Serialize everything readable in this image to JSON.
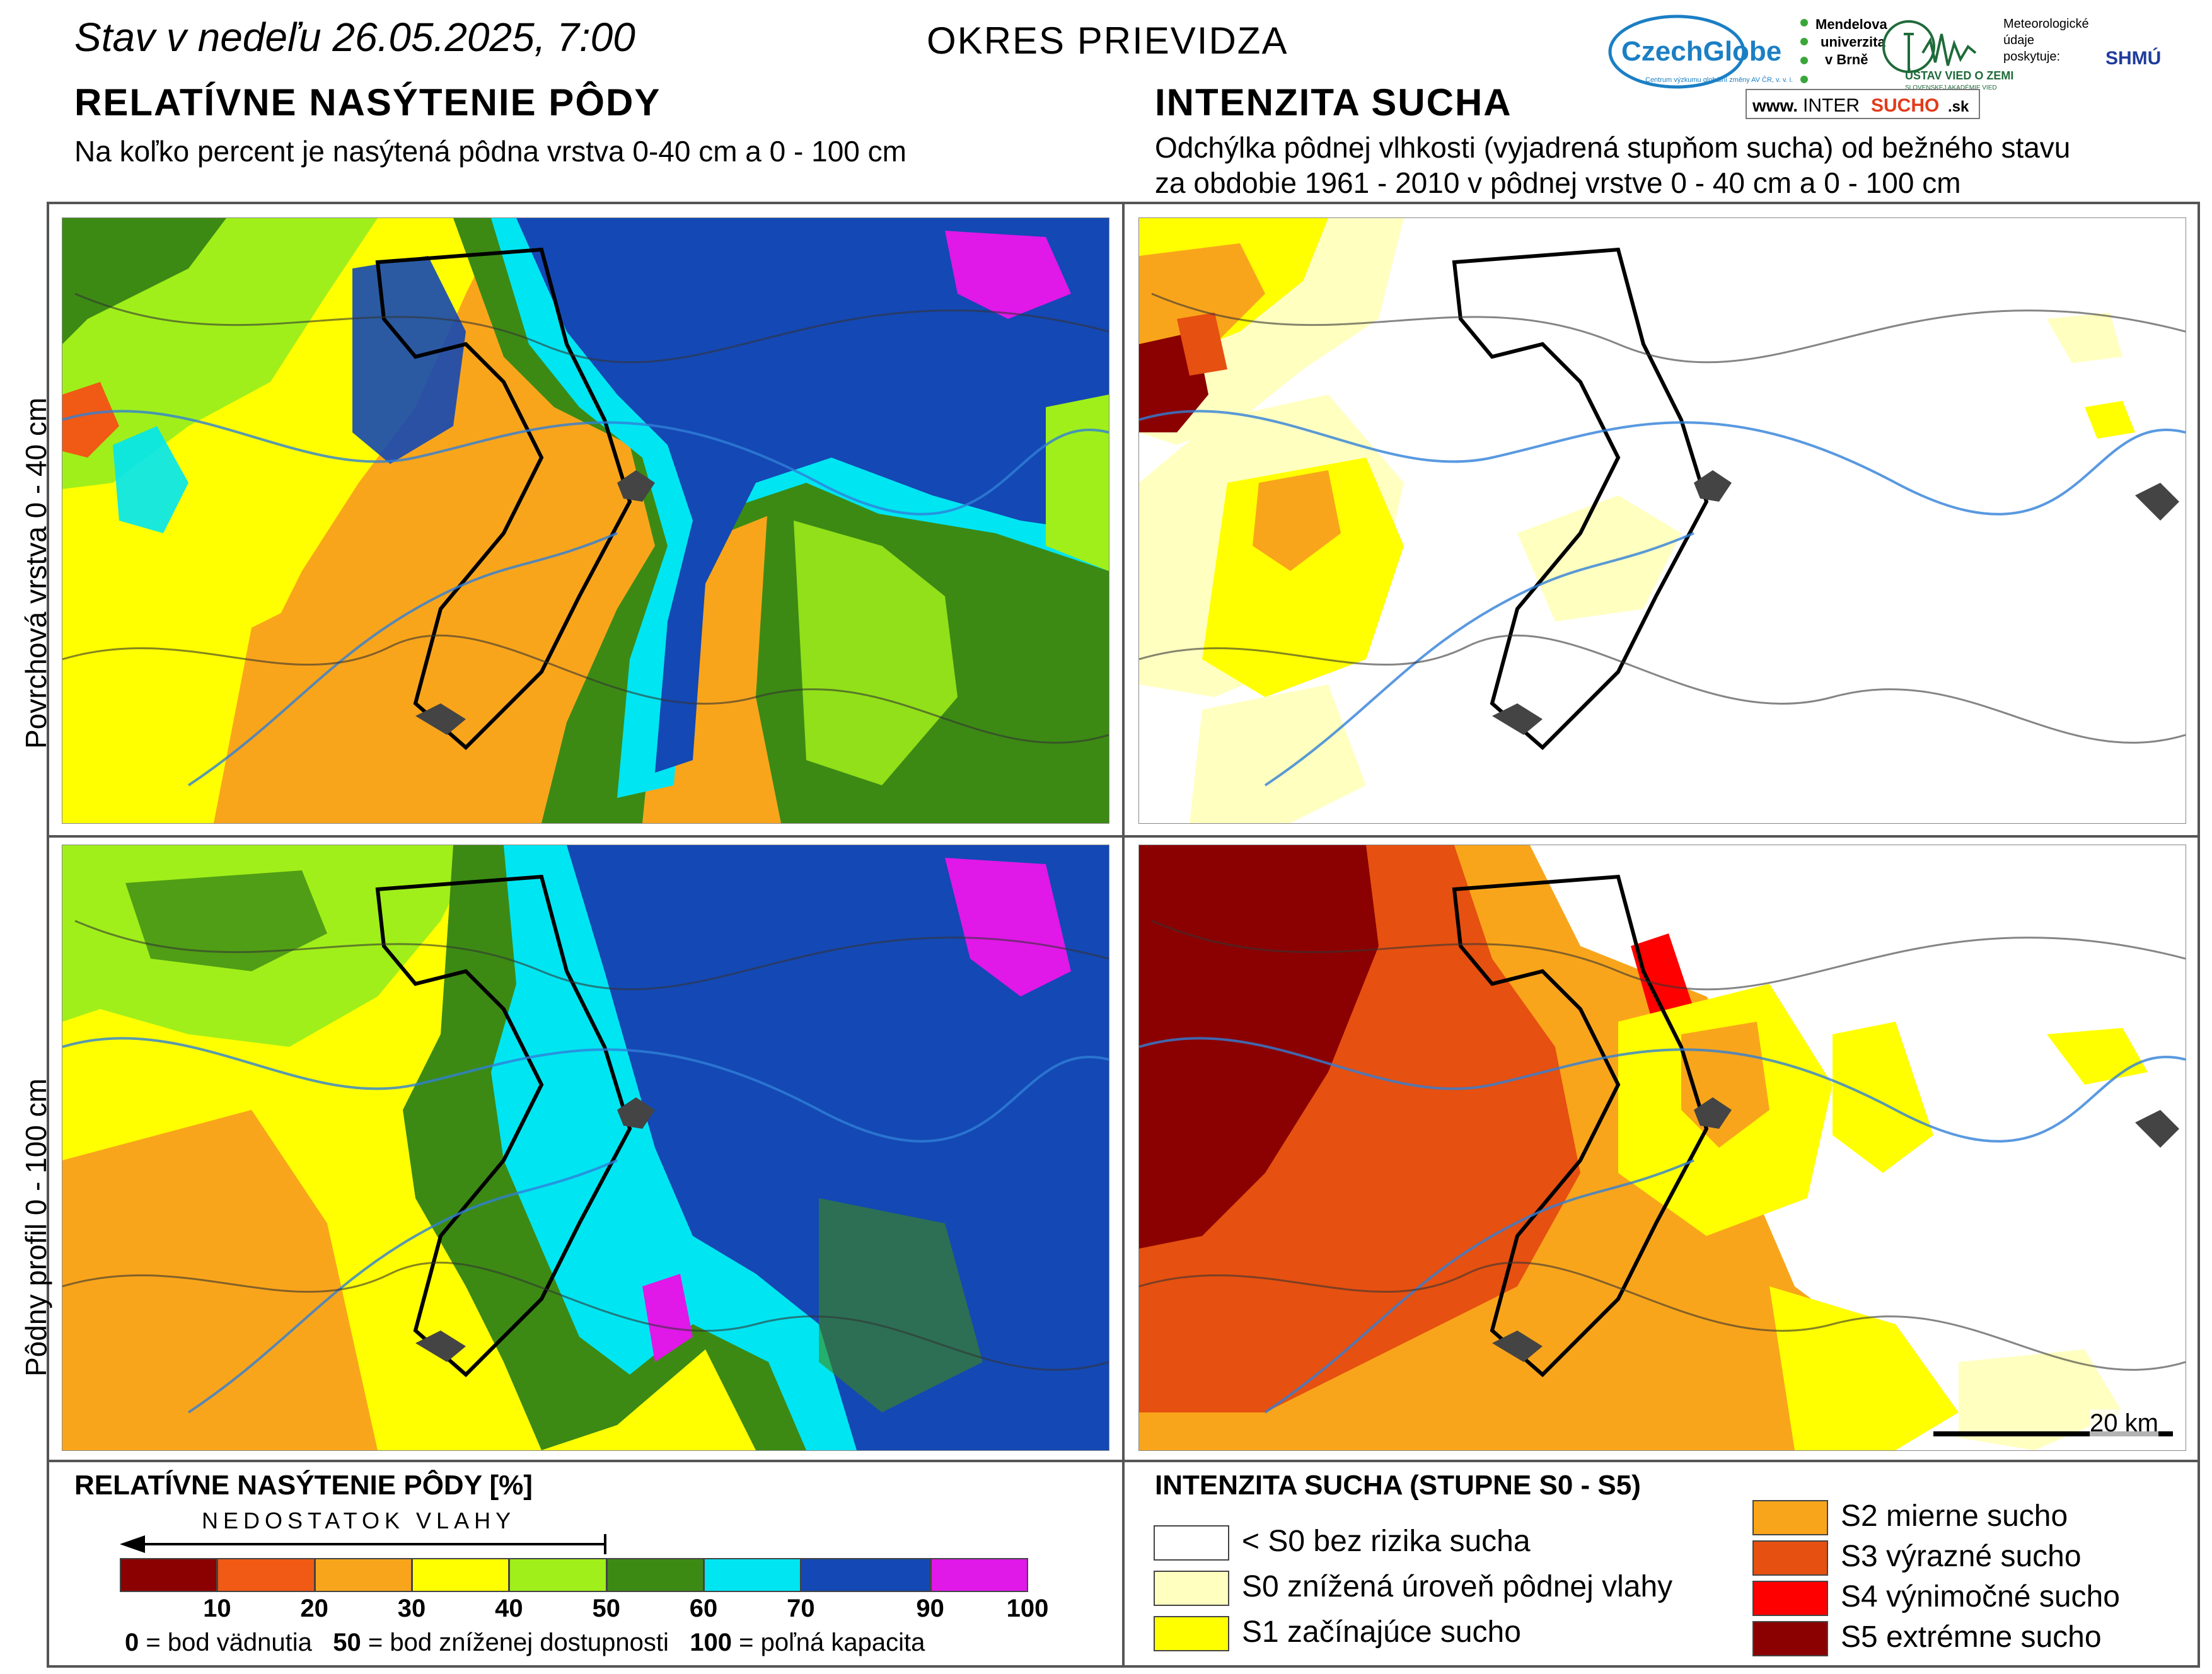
{
  "header": {
    "date_label": "Stav v nedeľu 26.05.2025, 7:00",
    "district": "OKRES  PRIEVIDZA"
  },
  "left_section": {
    "title": "RELATÍVNE NASÝTENIE PÔDY",
    "subtitle": "Na koľko percent je nasýtená pôdna vrstva 0-40 cm a 0 - 100 cm"
  },
  "right_section": {
    "title": "INTENZITA SUCHA",
    "subtitle_line1": "Odchýlka pôdnej vlhkosti (vyjadrená stupňom sucha) od bežného stavu",
    "subtitle_line2": "za obdobie 1961 - 2010 v pôdnej vrstve 0 - 40 cm a 0 - 100 cm"
  },
  "logos": {
    "czechglobe": "CzechGlobe",
    "czechglobe_sub": "Centrum výzkumu globální změny AV ČR, v. v. i.",
    "mendelu_line1": "Mendelova",
    "mendelu_line2": "univerzita",
    "mendelu_line3": "v Brně",
    "ustav": "ÚSTAV VIED O ZEMI",
    "ustav_sub": "SLOVENSKEJ AKADÉMIE VIED",
    "meteo_line1": "Meteorologické",
    "meteo_line2": "údaje",
    "meteo_line3": "poskytuje:",
    "shmu": "SHMÚ",
    "intersucho_prefix": "www.",
    "intersucho_inter": "INTER",
    "intersucho_sucho": "SUCHO",
    "intersucho_suffix": ".sk"
  },
  "rows": {
    "top_label": "Povrchová vrstva 0 - 40 cm",
    "bottom_label": "Pôdny profil 0 - 100 cm"
  },
  "scale_bar": {
    "label": "20 km"
  },
  "saturation_legend": {
    "title": "RELATÍVNE NASÝTENIE PÔDY [%]",
    "arrow_label": "NEDOSTATOK VLAHY",
    "classes": [
      {
        "from": 0,
        "to": 10,
        "color": "#8b0000"
      },
      {
        "from": 10,
        "to": 20,
        "color": "#f05a14"
      },
      {
        "from": 20,
        "to": 30,
        "color": "#f9a51b"
      },
      {
        "from": 30,
        "to": 40,
        "color": "#ffff00"
      },
      {
        "from": 40,
        "to": 50,
        "color": "#a0ef1a"
      },
      {
        "from": 50,
        "to": 60,
        "color": "#3c8a14"
      },
      {
        "from": 60,
        "to": 70,
        "color": "#00e5f2"
      },
      {
        "from": 70,
        "to": 90,
        "color": "#1448b4"
      },
      {
        "from": 90,
        "to": 100,
        "color": "#e018e8"
      }
    ],
    "ticks": [
      "10",
      "20",
      "30",
      "40",
      "50",
      "60",
      "70",
      "90",
      "100"
    ],
    "note_0_value": "0",
    "note_0_text": " = bod vädnutia",
    "note_50_value": "50",
    "note_50_text": " = bod zníženej dostupnosti",
    "note_100_value": "100",
    "note_100_text": " = poľná kapacita"
  },
  "drought_legend": {
    "title": "INTENZITA SUCHA (STUPNE S0 - S5)",
    "classes": [
      {
        "label": "< S0 bez rizika sucha",
        "color": "#ffffff"
      },
      {
        "label": "S0 znížená úroveň pôdnej vlahy",
        "color": "#ffffc0"
      },
      {
        "label": "S1 začínajúce sucho",
        "color": "#ffff00"
      },
      {
        "label": "S2 mierne sucho",
        "color": "#f9a51b"
      },
      {
        "label": "S3 výrazné sucho",
        "color": "#e65010"
      },
      {
        "label": "S4 výnimočné sucho",
        "color": "#ff0000"
      },
      {
        "label": "S5 extrémne sucho",
        "color": "#8b0000"
      }
    ]
  }
}
